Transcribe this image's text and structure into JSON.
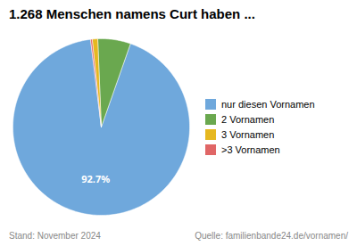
{
  "chart_data": {
    "type": "pie",
    "title": "1.268 Menschen namens Curt haben ...",
    "categories": [
      "nur diesen Vornamen",
      "2 Vornamen",
      "3 Vornamen",
      ">3 Vornamen"
    ],
    "values": [
      92.7,
      6.0,
      1.0,
      0.3
    ],
    "colors": [
      "#6FA8DC",
      "#6AA84F",
      "#E6B820",
      "#E06666"
    ],
    "data_labels": true,
    "value_labels": [
      "92.7%",
      null,
      null,
      null
    ],
    "legend": "right",
    "annotations": [
      "Stand: November 2024",
      "Quelle: familienbande24.de/vornamen/"
    ]
  }
}
